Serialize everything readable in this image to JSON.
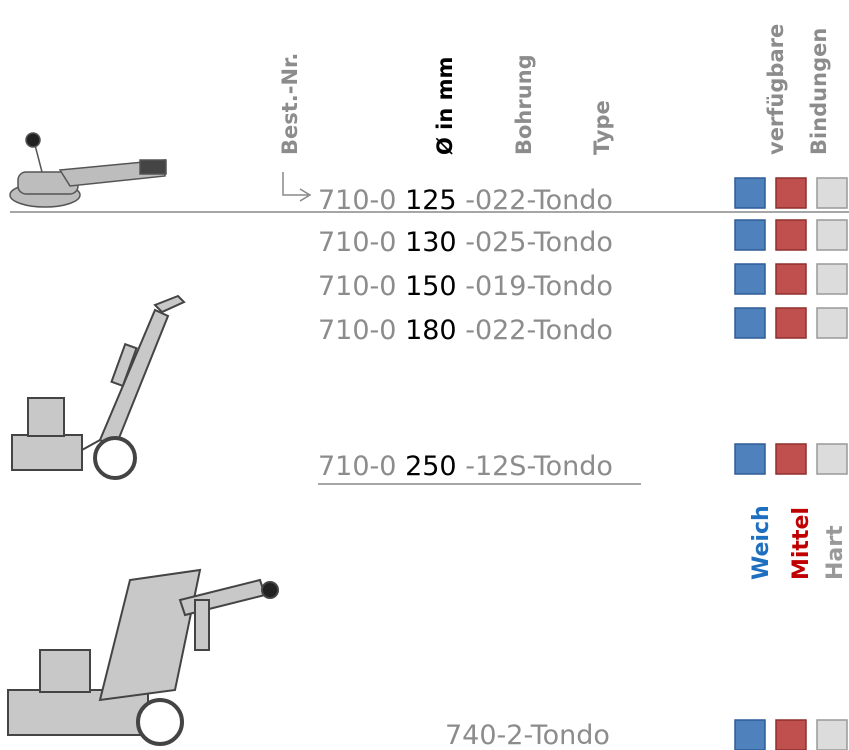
{
  "headers": [
    "Best.-Nr.",
    "Ø in mm",
    "Bohrung",
    "Type"
  ],
  "bindings_header": [
    "verfügbare",
    "Bindungen"
  ],
  "rows": [
    {
      "prefix": "710-0",
      "diameter": "125",
      "suffix": "-022-Tondo"
    },
    {
      "prefix": "710-0",
      "diameter": "130",
      "suffix": "-025-Tondo"
    },
    {
      "prefix": "710-0",
      "diameter": "150",
      "suffix": "-019-Tondo"
    },
    {
      "prefix": "710-0",
      "diameter": "180",
      "suffix": "-022-Tondo"
    },
    {
      "prefix": "710-0",
      "diameter": "250",
      "suffix": "-12S-Tondo"
    }
  ],
  "last_row": "740-2-Tondo",
  "legend": [
    "Weich",
    "Mittel",
    "Hart"
  ]
}
